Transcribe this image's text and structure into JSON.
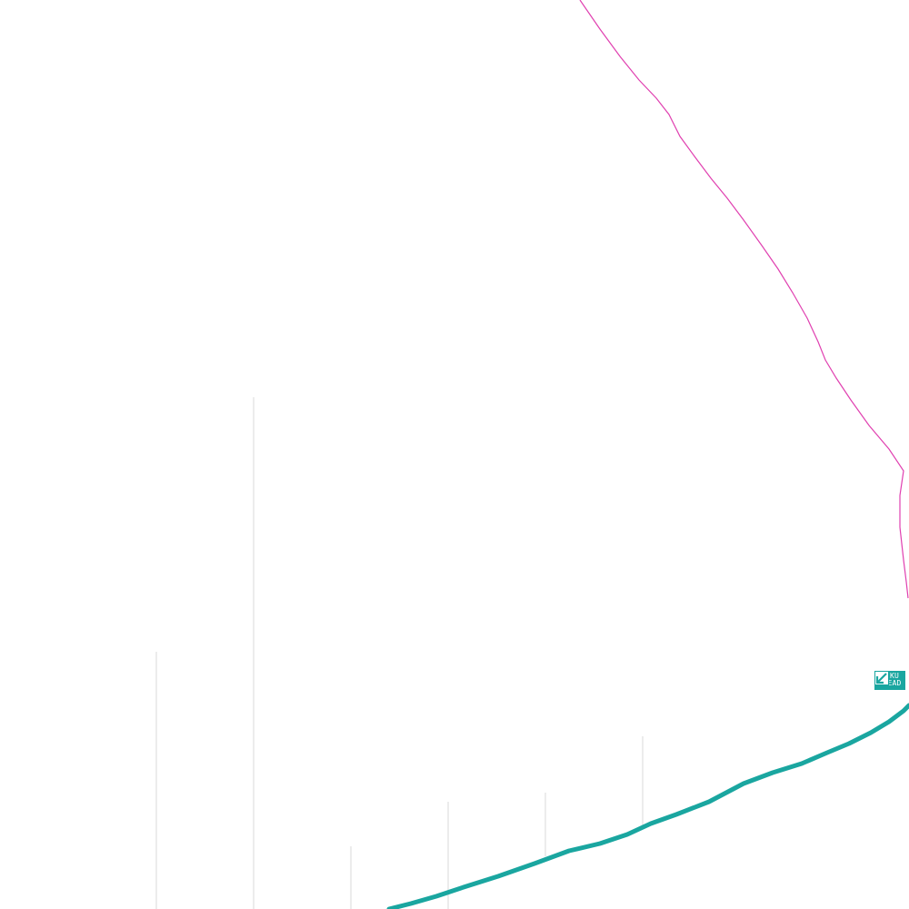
{
  "map": {
    "boundary_color": "#e040b0",
    "route_color": "#1aa6a0",
    "pole_color": "#d8d8d8"
  },
  "marker": {
    "line1": "MIKU",
    "line2": "AHEAD",
    "icon": "arrow-down-left-icon",
    "color": "#1aa6a0"
  }
}
